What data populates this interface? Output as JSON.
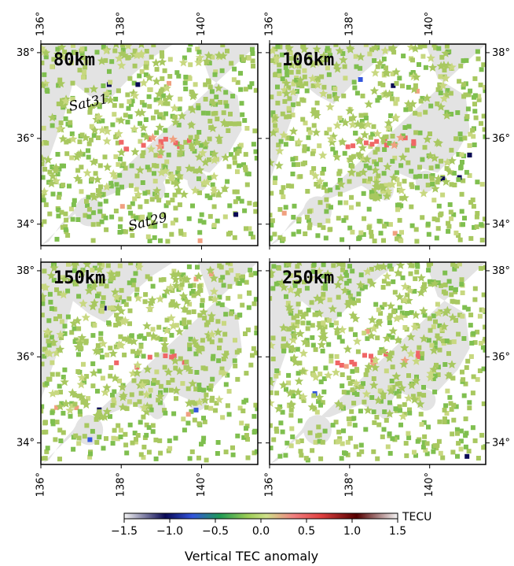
{
  "chart_data": [
    {
      "type": "scatter",
      "panel_label": "80km",
      "xlim": [
        136,
        141.4
      ],
      "ylim": [
        33.5,
        38.2
      ],
      "annotations": [
        "Sat31",
        "Sat29"
      ]
    },
    {
      "type": "scatter",
      "panel_label": "106km",
      "xlim": [
        136,
        141.4
      ],
      "ylim": [
        33.5,
        38.2
      ],
      "annotations": []
    },
    {
      "type": "scatter",
      "panel_label": "150km",
      "xlim": [
        136,
        141.4
      ],
      "ylim": [
        33.5,
        38.2
      ],
      "annotations": []
    },
    {
      "type": "scatter",
      "panel_label": "250km",
      "xlim": [
        136,
        141.4
      ],
      "ylim": [
        33.5,
        38.2
      ],
      "annotations": []
    }
  ],
  "axes": {
    "x_ticks": [
      136,
      138,
      140
    ],
    "x_tick_labels": [
      "136°",
      "138°",
      "140°"
    ],
    "y_ticks": [
      34,
      36,
      38
    ],
    "y_tick_labels": [
      "34°",
      "36°",
      "38°"
    ]
  },
  "colorbar": {
    "title": "Vertical TEC anomaly",
    "unit": "TECU",
    "range": [
      -1.5,
      1.5
    ],
    "ticks": [
      -1.5,
      -1.0,
      -0.5,
      0.0,
      0.5,
      1.0,
      1.5
    ],
    "tick_labels": [
      "−1.5",
      "−1.0",
      "−0.5",
      "0.0",
      "0.5",
      "1.0",
      "1.5"
    ],
    "colors": [
      "#f4f4f4",
      "#0a0a55",
      "#3355dd",
      "#1f9a55",
      "#9acc55",
      "#cfe08a",
      "#f08080",
      "#e04040",
      "#550000",
      "#f4f4f4"
    ]
  },
  "colors": {
    "land": "#e3e3e3",
    "background": "#ffffff",
    "neutral_marker": "#8fbf55",
    "positive": "#f06666",
    "negative": "#2266cc"
  }
}
